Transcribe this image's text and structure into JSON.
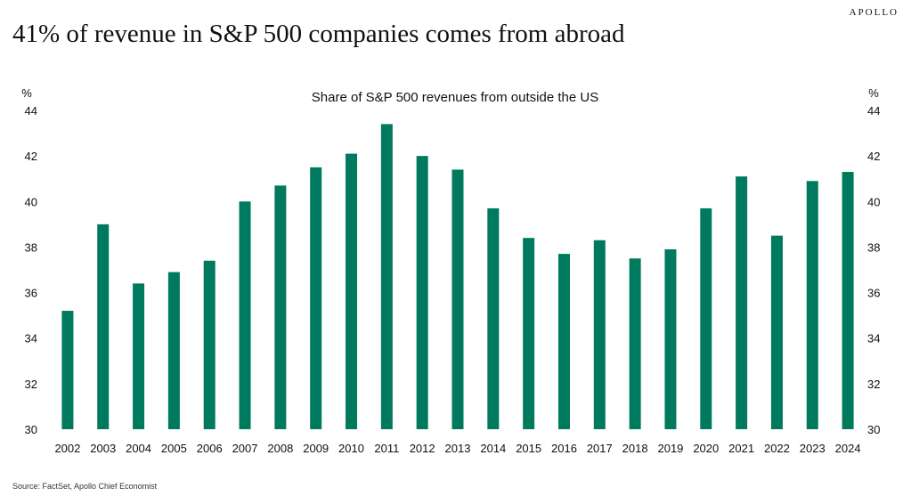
{
  "brand": "APOLLO",
  "headline": "41% of revenue in S&P 500 companies comes from abroad",
  "source": "Source: FactSet, Apollo Chief Economist",
  "colors": {
    "bar": "#007a5e"
  },
  "chart_data": {
    "type": "bar",
    "title": "Share of S&P 500 revenues from outside the US",
    "ylabel_left": "%",
    "ylabel_right": "%",
    "ylim": [
      30,
      44
    ],
    "yticks": [
      30,
      32,
      34,
      36,
      38,
      40,
      42,
      44
    ],
    "grid": false,
    "legend": "none",
    "categories": [
      "2002",
      "2003",
      "2004",
      "2005",
      "2006",
      "2007",
      "2008",
      "2009",
      "2010",
      "2011",
      "2012",
      "2013",
      "2014",
      "2015",
      "2016",
      "2017",
      "2018",
      "2019",
      "2020",
      "2021",
      "2022",
      "2023",
      "2024"
    ],
    "values": [
      35.2,
      39.0,
      36.4,
      36.9,
      37.4,
      40.0,
      40.7,
      41.5,
      42.1,
      43.4,
      42.0,
      41.4,
      39.7,
      38.4,
      37.7,
      38.3,
      37.5,
      37.9,
      39.7,
      41.1,
      38.5,
      40.9,
      41.3
    ]
  }
}
